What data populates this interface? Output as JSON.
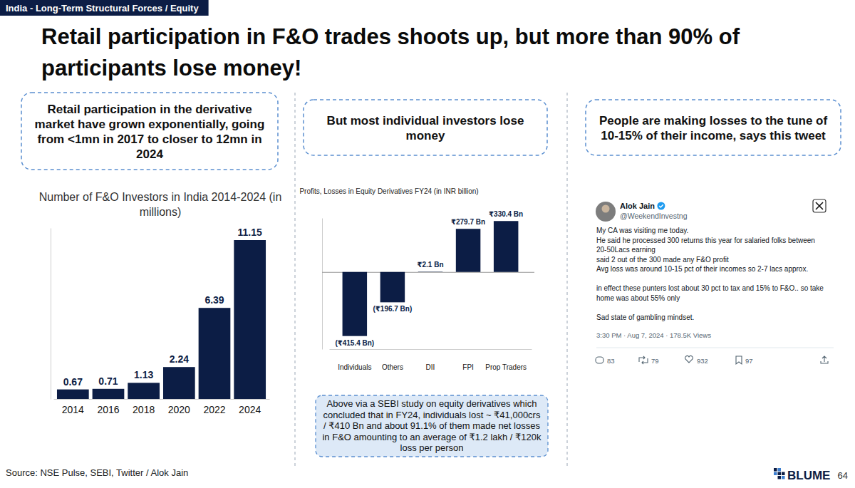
{
  "header": {
    "tag": "India - Long-Term Structural Forces / Equity",
    "title": "Retail participation in F&O trades shoots up, but more than 90% of participants lose money!"
  },
  "panels": [
    {
      "heading": "Retail participation in the derivative market have grown exponentially, going from <1mn in 2017 to closer to 12mn in 2024"
    },
    {
      "heading": "But most individual investors lose money"
    },
    {
      "heading": "People are making losses to the tune of 10-15% of their income, says this tweet"
    }
  ],
  "chart_data": [
    {
      "type": "bar",
      "title": "Number of F&O Investors in India 2014-2024 (in millions)",
      "categories": [
        "2014",
        "2016",
        "2018",
        "2020",
        "2022",
        "2024"
      ],
      "values": [
        0.67,
        0.71,
        1.13,
        2.24,
        6.39,
        11.15
      ],
      "color": "#0c1d45",
      "ylim": [
        0,
        12
      ],
      "yticks": [],
      "grid": false,
      "data_labels": true,
      "tick_labels": "x"
    },
    {
      "type": "bar",
      "title": "Profits, Losses in Equity Derivatives FY24 (in INR billion)",
      "categories": [
        "Individuals",
        "Others",
        "DII",
        "FPI",
        "Prop Traders"
      ],
      "values": [
        -415.4,
        -196.7,
        2.1,
        279.7,
        330.4
      ],
      "value_labels": [
        "(₹415.4 Bn)",
        "(₹196.7 Bn)",
        "₹2.1 Bn",
        "₹279.7 Bn",
        "₹330.4 Bn"
      ],
      "color": "#0c1d45",
      "ylim": [
        -500,
        350
      ],
      "yticks": [
        0
      ],
      "grid": true,
      "data_labels": true,
      "tick_labels": "x"
    }
  ],
  "note": "Above via a SEBI study on equity derivatives which concluded that in FY24, individuals lost ~ ₹41,000crs / ₹410 Bn and about 91.1% of them made net losses in F&O amounting to an average of ₹1.2 lakh / ₹120k loss per person",
  "tweet": {
    "name": "Alok Jain",
    "handle": "@WeekendInvestng",
    "paragraphs": [
      [
        "My CA was visiting me today.",
        "He said he processed 300 returns this year for salaried folks between",
        "20-50Lacs earning",
        "said 2 out of the 300 made any F&O profit",
        "Avg loss was around 10-15 pct of their incomes so 2-7 lacs approx."
      ],
      [
        "in effect these punters lost about 30 pct to tax and 15% to F&O.. so take",
        "home was about 55% only"
      ],
      [
        "Sad state of gambling mindset."
      ]
    ],
    "meta": "3:30 PM · Aug 7, 2024 · 178.5K Views",
    "stats": [
      "83",
      "79",
      "932",
      "97"
    ]
  },
  "source": "Source: NSE Pulse, SEBI, Twitter / Alok Jain",
  "logo": "BLUME",
  "page": "64"
}
